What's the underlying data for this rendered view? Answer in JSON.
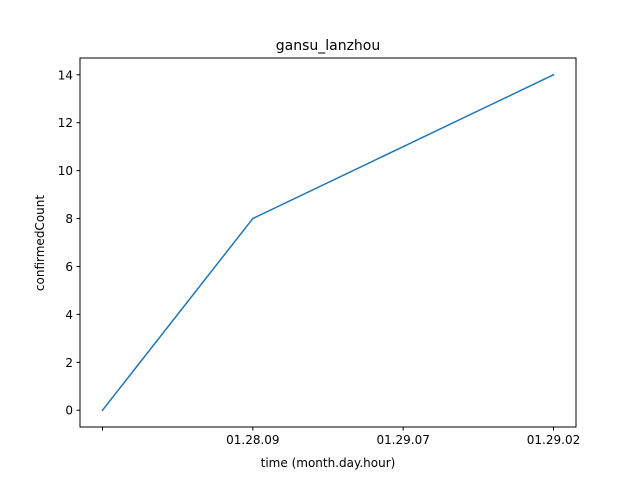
{
  "chart_data": {
    "type": "line",
    "title": "gansu_lanzhou",
    "xlabel": "time (month.day.hour)",
    "ylabel": "confirmedCount",
    "categories": [
      "",
      "01.28.09",
      "01.29.07",
      "01.29.02"
    ],
    "series": [
      {
        "name": "confirmedCount",
        "color": "#1f77b4",
        "values": [
          0,
          8,
          11,
          14
        ]
      }
    ],
    "ylim": [
      -0.7,
      14.7
    ],
    "yticks": [
      0,
      2,
      4,
      6,
      8,
      10,
      12,
      14
    ],
    "grid": false,
    "legend": "none"
  }
}
